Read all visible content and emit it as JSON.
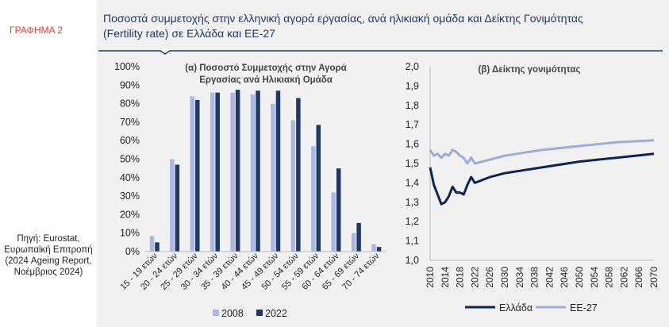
{
  "figure_label": "ΓΡΑΦΗΜΑ 2",
  "source_note": "Πηγή: Eurostat, Ευρωπαϊκή Επιτροπή (2024 Ageing Report, Νοέμβριος 2024)",
  "title_line1": "Ποσοστά συμμετοχής στην ελληνική αγορά εργασίας, ανά ηλικιακή ομάδα και Δείκτης Γονιμότητας",
  "title_line2": "(Fertility rate) σε Ελλάδα και ΕΕ-27",
  "colors": {
    "accent": "#1f3864",
    "red": "#e8423a",
    "light": "#9dabdf",
    "panel": "#f1f1f1"
  },
  "chart_data": [
    {
      "type": "bar",
      "title_line1": "(α) Ποσοστό Συμμετοχής στην Αγορά",
      "title_line2": "Εργασίας ανά Ηλικιακή Ομάδα",
      "categories": [
        "15 - 19 ετών",
        "20 - 24 ετών",
        "25 - 29 ετών",
        "30 - 34 ετών",
        "35 - 39 ετών",
        "40 - 44 ετών",
        "45 - 49 ετών",
        "50 - 54 ετών",
        "55 - 59 ετών",
        "60 - 64 ετών",
        "65 - 69 ετών",
        "70 - 74 ετών"
      ],
      "y_ticks": [
        "0%",
        "10%",
        "20%",
        "30%",
        "40%",
        "50%",
        "60%",
        "70%",
        "80%",
        "90%",
        "100%"
      ],
      "ylim": [
        0,
        100
      ],
      "series": [
        {
          "name": "2008",
          "color": "#a9b8e6",
          "values": [
            8.5,
            50,
            84,
            86,
            86,
            85,
            80,
            71,
            57,
            32,
            10,
            4
          ]
        },
        {
          "name": "2022",
          "color": "#1f3864",
          "values": [
            5,
            47,
            82,
            86,
            87.5,
            87,
            87,
            83,
            68.5,
            45,
            15.5,
            2.5
          ]
        }
      ]
    },
    {
      "type": "line",
      "title": "(β) Δείκτης γονιμότητας",
      "x_ticks": [
        "2010",
        "2014",
        "2018",
        "2022",
        "2026",
        "2030",
        "2034",
        "2038",
        "2042",
        "2046",
        "2050",
        "2054",
        "2058",
        "2062",
        "2066",
        "2070"
      ],
      "y_ticks": [
        "1,0",
        "1,1",
        "1,2",
        "1,3",
        "1,4",
        "1,5",
        "1,6",
        "1,7",
        "1,8",
        "1,9",
        "2,0"
      ],
      "xlim": [
        2010,
        2070
      ],
      "ylim": [
        1.0,
        2.0
      ],
      "series": [
        {
          "name": "Ελλάδα",
          "color": "#0e2356",
          "points": [
            [
              2010,
              1.48
            ],
            [
              2011,
              1.39
            ],
            [
              2012,
              1.34
            ],
            [
              2013,
              1.29
            ],
            [
              2014,
              1.3
            ],
            [
              2015,
              1.33
            ],
            [
              2016,
              1.38
            ],
            [
              2017,
              1.35
            ],
            [
              2018,
              1.35
            ],
            [
              2019,
              1.34
            ],
            [
              2020,
              1.39
            ],
            [
              2021,
              1.43
            ],
            [
              2022,
              1.4
            ],
            [
              2026,
              1.43
            ],
            [
              2030,
              1.45
            ],
            [
              2040,
              1.48
            ],
            [
              2050,
              1.51
            ],
            [
              2060,
              1.53
            ],
            [
              2070,
              1.55
            ]
          ]
        },
        {
          "name": "ΕΕ-27",
          "color": "#9dabdf",
          "points": [
            [
              2010,
              1.57
            ],
            [
              2011,
              1.54
            ],
            [
              2012,
              1.55
            ],
            [
              2013,
              1.53
            ],
            [
              2014,
              1.55
            ],
            [
              2015,
              1.54
            ],
            [
              2016,
              1.57
            ],
            [
              2017,
              1.56
            ],
            [
              2018,
              1.54
            ],
            [
              2019,
              1.53
            ],
            [
              2020,
              1.5
            ],
            [
              2021,
              1.53
            ],
            [
              2022,
              1.5
            ],
            [
              2026,
              1.52
            ],
            [
              2030,
              1.54
            ],
            [
              2040,
              1.57
            ],
            [
              2050,
              1.59
            ],
            [
              2060,
              1.61
            ],
            [
              2070,
              1.62
            ]
          ]
        }
      ]
    }
  ]
}
